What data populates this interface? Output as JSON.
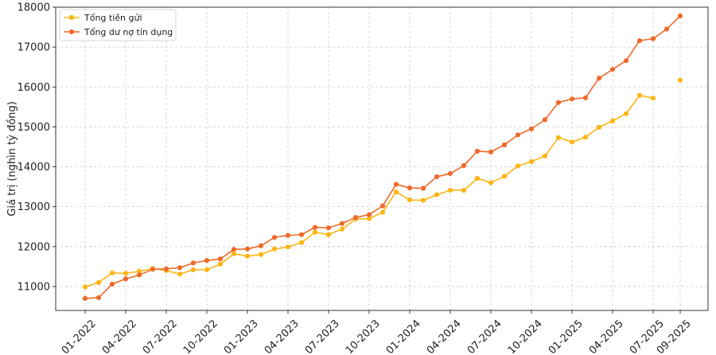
{
  "chart_data": {
    "type": "line",
    "title": "",
    "xlabel": "",
    "ylabel": "Giá trị (nghìn tỷ đồng)",
    "ylim": [
      10400,
      18000
    ],
    "yticks": [
      11000,
      12000,
      13000,
      14000,
      15000,
      16000,
      17000,
      18000
    ],
    "x_tick_labels": [
      "01-2022",
      "04-2022",
      "07-2022",
      "10-2022",
      "01-2023",
      "04-2023",
      "07-2023",
      "10-2023",
      "01-2024",
      "04-2024",
      "07-2024",
      "10-2024",
      "01-2025",
      "04-2025",
      "07-2025",
      "09-2025"
    ],
    "grid": true,
    "legend_position": "top-left",
    "x": [
      "01-2022",
      "02-2022",
      "03-2022",
      "04-2022",
      "05-2022",
      "06-2022",
      "07-2022",
      "08-2022",
      "09-2022",
      "10-2022",
      "11-2022",
      "12-2022",
      "01-2023",
      "02-2023",
      "03-2023",
      "04-2023",
      "05-2023",
      "06-2023",
      "07-2023",
      "08-2023",
      "09-2023",
      "10-2023",
      "11-2023",
      "12-2023",
      "01-2024",
      "02-2024",
      "03-2024",
      "04-2024",
      "05-2024",
      "06-2024",
      "07-2024",
      "08-2024",
      "09-2024",
      "10-2024",
      "11-2024",
      "12-2024",
      "01-2025",
      "02-2025",
      "03-2025",
      "04-2025",
      "05-2025",
      "06-2025",
      "07-2025",
      "08-2025",
      "09-2025"
    ],
    "series": [
      {
        "name": "Tổng tiền gửi",
        "color": "#FDB515",
        "values": [
          10990,
          11100,
          11340,
          11330,
          11380,
          11450,
          11400,
          11310,
          11420,
          11420,
          11560,
          11820,
          11760,
          11800,
          11940,
          11990,
          12100,
          12360,
          12300,
          12440,
          12690,
          12700,
          12860,
          13370,
          13170,
          13160,
          13300,
          13410,
          13410,
          13710,
          13600,
          13760,
          14020,
          14130,
          14270,
          14730,
          14620,
          14740,
          14990,
          15150,
          15330,
          15790,
          15720,
          null,
          16170
        ]
      },
      {
        "name": "Tổng dư nợ tín dụng",
        "color": "#EE6A2A",
        "values": [
          10700,
          10720,
          11060,
          11190,
          11290,
          11430,
          11440,
          11470,
          11590,
          11650,
          11690,
          11930,
          11940,
          12020,
          12230,
          12280,
          12300,
          12480,
          12470,
          12580,
          12730,
          12800,
          13020,
          13560,
          13470,
          13460,
          13750,
          13830,
          14030,
          14390,
          14370,
          14550,
          14800,
          14950,
          15180,
          15610,
          15700,
          15730,
          16220,
          16440,
          16660,
          17160,
          17210,
          17450,
          17780
        ]
      }
    ]
  }
}
